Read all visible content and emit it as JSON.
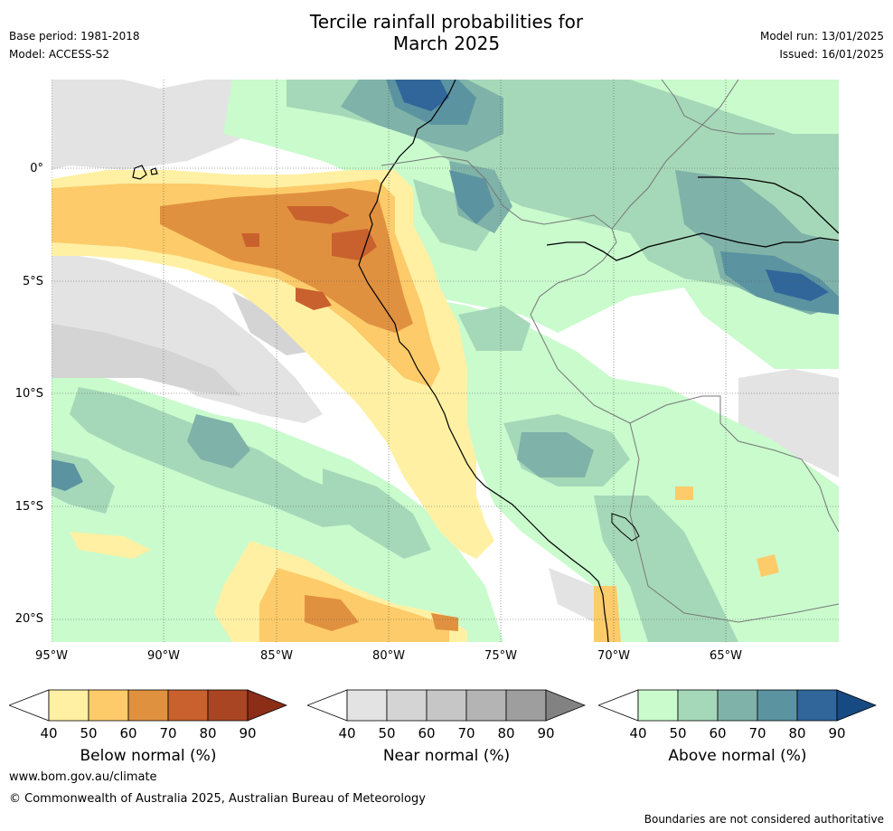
{
  "header": {
    "title_line1": "Tercile rainfall probabilities for",
    "title_line2": "March 2025",
    "base_period": "Base period: 1981-2018",
    "model": "Model: ACCESS-S2",
    "model_run": "Model run: 13/01/2025",
    "issued": "Issued: 16/01/2025"
  },
  "map": {
    "lat_labels": [
      "0°",
      "5°S",
      "10°S",
      "15°S",
      "20°S"
    ],
    "lon_labels": [
      "95°W",
      "90°W",
      "85°W",
      "80°W",
      "75°W",
      "70°W",
      "65°W"
    ],
    "colors": {
      "below": [
        "#fff0a3",
        "#fdcb69",
        "#e0913f",
        "#c9612e",
        "#aa4524",
        "#8c2d17"
      ],
      "near": [
        "#e3e3e3",
        "#d4d4d4",
        "#c6c6c6",
        "#b4b4b4",
        "#9e9e9e",
        "#828282"
      ],
      "above": [
        "#c9fbcd",
        "#a5d8b8",
        "#7fb2a8",
        "#5b93a1",
        "#30669a",
        "#174a83"
      ]
    }
  },
  "legend": {
    "ticks": [
      "40",
      "50",
      "60",
      "70",
      "80",
      "90"
    ],
    "below_label": "Below normal (%)",
    "near_label": "Near normal (%)",
    "above_label": "Above normal (%)"
  },
  "footer": {
    "url": "www.bom.gov.au/climate",
    "copyright": "© Commonwealth of Australia 2025, Australian Bureau of Meteorology",
    "disclaimer": "Boundaries are not considered authoritative"
  }
}
